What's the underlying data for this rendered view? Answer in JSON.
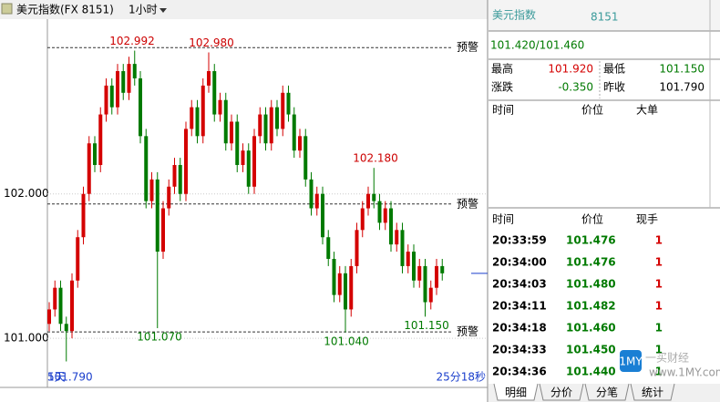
{
  "toolbar": {
    "symbol": "美元指数(FX 8151)",
    "period": "1小时"
  },
  "chart_data": {
    "type": "candlestick",
    "open": [
      101.1,
      101.2,
      101.35,
      101.1,
      101.05,
      101.4,
      101.7,
      102.0,
      102.35,
      102.2,
      102.55,
      102.75,
      102.6,
      102.85,
      102.7,
      102.9,
      102.8,
      102.4,
      101.95,
      102.1,
      101.6,
      101.9,
      102.05,
      102.2,
      102.0,
      102.45,
      102.6,
      102.4,
      102.75,
      102.85,
      102.55,
      102.65,
      102.35,
      102.5,
      102.2,
      102.3,
      102.05,
      102.4,
      102.55,
      102.35,
      102.6,
      102.45,
      102.7,
      102.55,
      102.3,
      102.4,
      102.1,
      101.9,
      102.0,
      101.7,
      101.55,
      101.3,
      101.45,
      101.2,
      101.5,
      101.75,
      101.9,
      102.0,
      101.95,
      101.8,
      101.9,
      101.65,
      101.75,
      101.5,
      101.6,
      101.4,
      101.5,
      101.25,
      101.35,
      101.5
    ],
    "high": [
      101.25,
      101.4,
      101.4,
      101.15,
      101.45,
      101.75,
      102.05,
      102.4,
      102.4,
      102.6,
      102.8,
      102.8,
      102.9,
      102.9,
      102.95,
      102.992,
      102.85,
      102.45,
      102.15,
      102.15,
      101.95,
      102.1,
      102.25,
      102.25,
      102.5,
      102.65,
      102.65,
      102.8,
      102.98,
      102.9,
      102.7,
      102.7,
      102.55,
      102.55,
      102.35,
      102.35,
      102.45,
      102.6,
      102.6,
      102.65,
      102.65,
      102.75,
      102.75,
      102.6,
      102.45,
      102.45,
      102.15,
      102.05,
      102.05,
      101.75,
      101.6,
      101.5,
      101.5,
      101.55,
      101.8,
      101.95,
      102.05,
      102.18,
      102.0,
      101.95,
      101.95,
      101.8,
      101.8,
      101.65,
      101.65,
      101.55,
      101.55,
      101.4,
      101.55,
      101.55
    ],
    "low": [
      101.05,
      101.15,
      101.05,
      100.84,
      101.0,
      101.35,
      101.65,
      101.95,
      102.15,
      102.15,
      102.5,
      102.55,
      102.55,
      102.65,
      102.65,
      102.75,
      102.35,
      101.9,
      101.9,
      101.07,
      101.55,
      101.85,
      102.0,
      101.95,
      101.95,
      102.4,
      102.35,
      102.35,
      102.7,
      102.5,
      102.5,
      102.3,
      102.3,
      102.15,
      102.15,
      102.0,
      102.0,
      102.35,
      102.3,
      102.3,
      102.4,
      102.4,
      102.5,
      102.25,
      102.25,
      102.05,
      101.85,
      101.85,
      101.65,
      101.5,
      101.25,
      101.25,
      101.04,
      101.15,
      101.45,
      101.7,
      101.85,
      101.9,
      101.75,
      101.75,
      101.6,
      101.6,
      101.45,
      101.45,
      101.35,
      101.35,
      101.15,
      101.2,
      101.3,
      101.4
    ],
    "close": [
      101.2,
      101.35,
      101.1,
      101.05,
      101.4,
      101.7,
      102.0,
      102.35,
      102.2,
      102.55,
      102.75,
      102.6,
      102.85,
      102.7,
      102.9,
      102.8,
      102.4,
      101.95,
      102.1,
      101.6,
      101.9,
      102.05,
      102.2,
      102.0,
      102.45,
      102.6,
      102.4,
      102.75,
      102.85,
      102.55,
      102.65,
      102.35,
      102.5,
      102.2,
      102.3,
      102.05,
      102.4,
      102.55,
      102.35,
      102.6,
      102.45,
      102.7,
      102.55,
      102.3,
      102.4,
      102.1,
      101.9,
      102.0,
      101.7,
      101.55,
      101.3,
      101.45,
      101.2,
      101.5,
      101.75,
      101.9,
      102.0,
      101.95,
      101.8,
      101.9,
      101.65,
      101.75,
      101.5,
      101.6,
      101.4,
      101.5,
      101.25,
      101.35,
      101.5,
      101.45
    ],
    "up_color": "#d40000",
    "down_color": "#007a00",
    "ylim": [
      100.66,
      103.21
    ],
    "yticks": [
      {
        "value": 102,
        "label": "102.000"
      },
      {
        "value": 101,
        "label": "101.000"
      }
    ],
    "grid": true,
    "alert_lines": [
      {
        "label": "预警",
        "value": 103.013
      },
      {
        "label": "预警",
        "value": 101.93
      },
      {
        "label": "预警",
        "value": 101.044
      }
    ],
    "annotations": [
      "102.992",
      "102.980",
      "102.180",
      "101.070",
      "101.040",
      "101.150"
    ],
    "current_price": 101.45,
    "footer_left": "5天",
    "footer_left_value": "101.790",
    "footer_right": "25分18秒"
  },
  "quote": {
    "name": "美元指数",
    "code": "8151",
    "price": "101.420/101.460",
    "stats": [
      {
        "label": "最高",
        "value": "101.920",
        "dir": "up"
      },
      {
        "label": "最低",
        "value": "101.150",
        "dir": "down"
      },
      {
        "label": "涨跌",
        "value": "-0.350",
        "dir": "down"
      },
      {
        "label": "昨收",
        "value": "101.790",
        "dir": "flat"
      }
    ]
  },
  "big_orders": {
    "headers": [
      "时间",
      "价位",
      "大单"
    ]
  },
  "trades": {
    "headers": [
      "时间",
      "价位",
      "现手"
    ],
    "rows": [
      [
        "20:33:59",
        "101.476",
        "1"
      ],
      [
        "20:34:00",
        "101.476",
        "1"
      ],
      [
        "20:34:03",
        "101.480",
        "1"
      ],
      [
        "20:34:11",
        "101.482",
        "1"
      ],
      [
        "20:34:18",
        "101.460",
        "1"
      ],
      [
        "20:34:33",
        "101.450",
        "1"
      ],
      [
        "20:34:36",
        "101.440",
        "1"
      ]
    ],
    "directions": [
      "up",
      "up",
      "up",
      "up",
      "down",
      "down",
      "down"
    ]
  },
  "tabs": [
    "明细",
    "分价",
    "分笔",
    "统计"
  ],
  "watermark": {
    "brand": "一买财经",
    "url": "www.1MY.com",
    "logo": "1MY"
  }
}
